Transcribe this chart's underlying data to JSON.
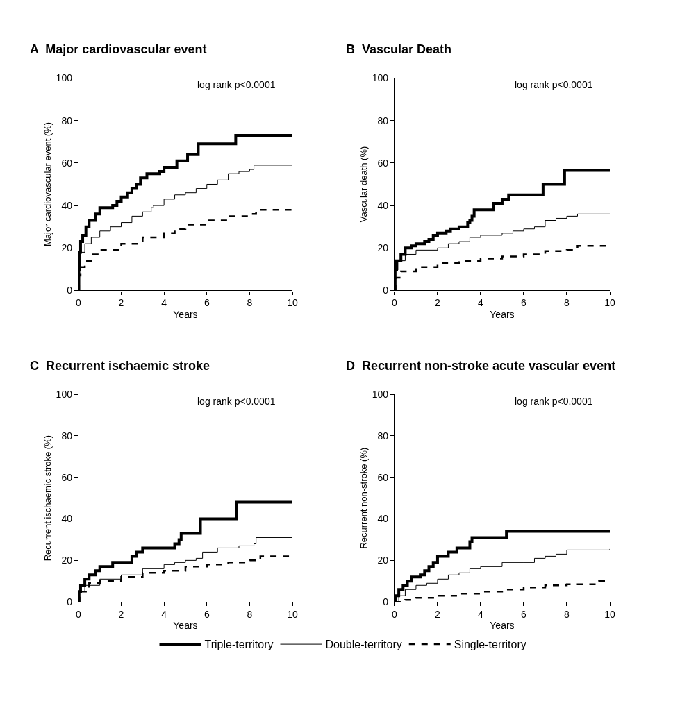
{
  "chart_data": [
    {
      "type": "step",
      "title": "A  Major cardiovascular event",
      "xlabel": "Years",
      "ylabel": "Major cardiovascular event (%)",
      "annotations": [
        "log rank p<0.0001"
      ],
      "xlim": [
        0,
        10
      ],
      "xticks": [
        0,
        2,
        4,
        6,
        8,
        10
      ],
      "ylim": [
        0,
        100
      ],
      "yticks": [
        0,
        20,
        40,
        60,
        80,
        100
      ],
      "legend": "bottom",
      "marker": "none",
      "series": [
        {
          "name": "Triple-territory",
          "color": "#000000",
          "line_style": "solid",
          "x": [
            0,
            0.02,
            0.05,
            0.1,
            0.2,
            0.35,
            0.5,
            0.8,
            1.0,
            1.4,
            1.6,
            1.8,
            2.0,
            2.3,
            2.5,
            2.7,
            2.9,
            3.2,
            3.6,
            3.8,
            4.0,
            4.6,
            5.1,
            5.6,
            7.35,
            10
          ],
          "values": [
            0,
            10,
            18,
            23,
            26,
            30,
            33,
            36,
            39,
            39,
            40,
            42,
            44,
            46,
            48,
            50,
            53,
            55,
            55,
            56,
            58,
            61,
            64,
            69,
            73,
            73
          ]
        },
        {
          "name": "Double-territory",
          "color": "#000000",
          "line_style": "solid",
          "x": [
            0,
            0.03,
            0.1,
            0.3,
            0.6,
            1,
            1.5,
            2,
            2.5,
            3,
            3.4,
            3.5,
            4,
            4.5,
            5,
            5.5,
            6,
            6.5,
            7,
            7.5,
            8,
            8.2,
            10
          ],
          "values": [
            0,
            12,
            18,
            22,
            25,
            28,
            30,
            32,
            35,
            37,
            39,
            40,
            43,
            45,
            46,
            48,
            50,
            52,
            55,
            56,
            57,
            59,
            59
          ]
        },
        {
          "name": "Single-territory",
          "color": "#000000",
          "line_style": "dashed",
          "x": [
            0,
            0.03,
            0.1,
            0.3,
            0.6,
            1,
            2,
            3,
            4,
            4.5,
            5,
            6,
            7,
            8,
            8.3,
            9,
            10
          ],
          "values": [
            0,
            7,
            11,
            14,
            17,
            19,
            22,
            25,
            27,
            29,
            31,
            33,
            35,
            36,
            38,
            38,
            39
          ]
        }
      ]
    },
    {
      "type": "step",
      "title": "B  Vascular Death",
      "xlabel": "Years",
      "ylabel": "Vascular death (%)",
      "annotations": [
        "log rank p<0.0001"
      ],
      "xlim": [
        0,
        10
      ],
      "xticks": [
        0,
        2,
        4,
        6,
        8,
        10
      ],
      "ylim": [
        0,
        100
      ],
      "yticks": [
        0,
        20,
        40,
        60,
        80,
        100
      ],
      "marker": "none",
      "series": [
        {
          "color": "#000000",
          "line_style": "solid",
          "x": [
            0,
            0.03,
            0.1,
            0.3,
            0.5,
            0.8,
            1,
            1.4,
            1.6,
            1.8,
            2,
            2.4,
            2.6,
            3,
            3.4,
            3.5,
            3.6,
            3.7,
            4.4,
            4.6,
            5.0,
            5.3,
            6.9,
            7.9,
            10
          ],
          "values": [
            0,
            10,
            14,
            17,
            20,
            21,
            22,
            23,
            24,
            26,
            27,
            28,
            29,
            30,
            32,
            33,
            35,
            38,
            38,
            41,
            43,
            45,
            50,
            56.5,
            56.5
          ]
        },
        {
          "color": "#000000",
          "line_style": "solid",
          "x": [
            0,
            0.05,
            0.2,
            0.5,
            1,
            2,
            2.5,
            3,
            3.5,
            4,
            5,
            5.5,
            6,
            6.5,
            7,
            7.5,
            8,
            8.5,
            10
          ],
          "values": [
            0,
            10,
            14,
            17,
            19,
            20,
            22,
            23,
            25,
            26,
            27,
            28,
            29,
            30,
            33,
            34,
            35,
            36,
            36
          ]
        },
        {
          "color": "#000000",
          "line_style": "dashed",
          "x": [
            0,
            0.05,
            0.3,
            1,
            2,
            3,
            4,
            5,
            6,
            7,
            8,
            8.5,
            10
          ],
          "values": [
            0,
            6,
            9,
            11,
            13,
            14,
            15,
            16,
            17,
            18.5,
            19,
            21,
            22
          ]
        }
      ]
    },
    {
      "type": "step",
      "title": "C  Recurrent ischaemic stroke",
      "xlabel": "Years",
      "ylabel": "Recurrent ischaemic stroke (%)",
      "annotations": [
        "log rank p<0.0001"
      ],
      "xlim": [
        0,
        10
      ],
      "xticks": [
        0,
        2,
        4,
        6,
        8,
        10
      ],
      "ylim": [
        0,
        100
      ],
      "yticks": [
        0,
        20,
        40,
        60,
        80,
        100
      ],
      "marker": "none",
      "series": [
        {
          "color": "#000000",
          "line_style": "solid",
          "x": [
            0,
            0.03,
            0.1,
            0.3,
            0.5,
            0.8,
            1,
            1.5,
            1.6,
            2.4,
            2.5,
            2.7,
            3,
            4.4,
            4.5,
            4.7,
            4.8,
            5.6,
            5.7,
            7.3,
            7.4,
            10
          ],
          "values": [
            0,
            5,
            8,
            11,
            13,
            15,
            17,
            17,
            19,
            19,
            22,
            24,
            26,
            26,
            28,
            30,
            33,
            33,
            40,
            40,
            48,
            48
          ]
        },
        {
          "color": "#000000",
          "line_style": "solid",
          "x": [
            0,
            0.05,
            0.3,
            1,
            2,
            3,
            4,
            4.5,
            5,
            5.5,
            5.8,
            6.5,
            7.5,
            8.2,
            8.3,
            10
          ],
          "values": [
            0,
            5,
            8,
            11,
            13,
            16,
            18,
            19,
            20,
            21,
            24,
            26,
            27,
            28,
            31,
            31
          ]
        },
        {
          "color": "#000000",
          "line_style": "dashed",
          "x": [
            0,
            0.05,
            0.5,
            1,
            2,
            3,
            4,
            5,
            6,
            7,
            8,
            8.5,
            10
          ],
          "values": [
            0,
            5,
            9,
            10,
            12,
            14,
            15,
            17,
            18,
            19,
            20,
            22,
            22
          ]
        }
      ]
    },
    {
      "type": "step",
      "title": "D  Recurrent non-stroke acute vascular event",
      "xlabel": "Years",
      "ylabel": "Recurrent non-stroke (%)",
      "annotations": [
        "log rank p<0.0001"
      ],
      "xlim": [
        0,
        10
      ],
      "xticks": [
        0,
        2,
        4,
        6,
        8,
        10
      ],
      "ylim": [
        0,
        100
      ],
      "yticks": [
        0,
        20,
        40,
        60,
        80,
        100
      ],
      "marker": "none",
      "series": [
        {
          "color": "#000000",
          "line_style": "solid",
          "x": [
            0,
            0.05,
            0.2,
            0.4,
            0.6,
            0.8,
            1.2,
            1.4,
            1.6,
            1.8,
            2,
            2.4,
            2.5,
            2.9,
            3.4,
            3.5,
            3.6,
            5.1,
            5.2,
            10
          ],
          "values": [
            0,
            3,
            6,
            8,
            10,
            12,
            13,
            15,
            17,
            19,
            22,
            22,
            24,
            26,
            26,
            29,
            31,
            31,
            34,
            34
          ]
        },
        {
          "color": "#000000",
          "line_style": "solid",
          "x": [
            0,
            0.2,
            0.5,
            1,
            1.5,
            2,
            2.5,
            3,
            3.5,
            4,
            5,
            6,
            6.5,
            7,
            7.5,
            8,
            10
          ],
          "values": [
            0,
            3,
            6,
            8,
            9,
            11,
            13,
            14,
            16,
            17,
            19,
            19,
            21,
            22,
            23,
            25,
            25.5
          ]
        },
        {
          "color": "#000000",
          "line_style": "dashed",
          "x": [
            0,
            0.5,
            1,
            2,
            3,
            4,
            5,
            6,
            7,
            8,
            9,
            9.5,
            10
          ],
          "values": [
            0,
            1,
            2,
            3,
            4,
            5,
            6,
            7,
            8,
            8.5,
            8.5,
            10,
            10
          ]
        }
      ]
    }
  ]
}
